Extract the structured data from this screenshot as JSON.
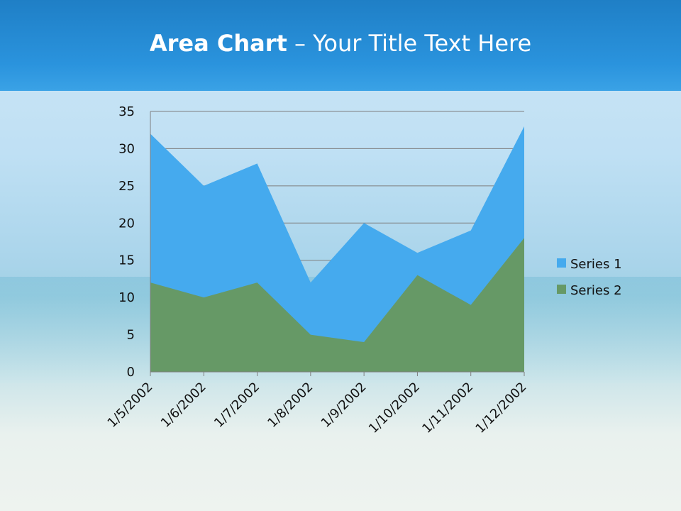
{
  "title": {
    "bold": "Area Chart",
    "rest": " – Your Title Text Here"
  },
  "chart_data": {
    "type": "area",
    "title": "",
    "xlabel": "",
    "ylabel": "",
    "categories": [
      "1/5/2002",
      "1/6/2002",
      "1/7/2002",
      "1/8/2002",
      "1/9/2002",
      "1/10/2002",
      "1/11/2002",
      "1/12/2002"
    ],
    "series": [
      {
        "name": "Series 1",
        "values": [
          32,
          25,
          28,
          12,
          20,
          16,
          19,
          33
        ],
        "color": "#45aaee"
      },
      {
        "name": "Series 2",
        "values": [
          12,
          10,
          12,
          5,
          4,
          13,
          9,
          18
        ],
        "color": "#669966"
      }
    ],
    "ylim": [
      0,
      35
    ],
    "yticks": [
      0,
      5,
      10,
      15,
      20,
      25,
      30,
      35
    ],
    "grid": true,
    "legend": "right"
  }
}
